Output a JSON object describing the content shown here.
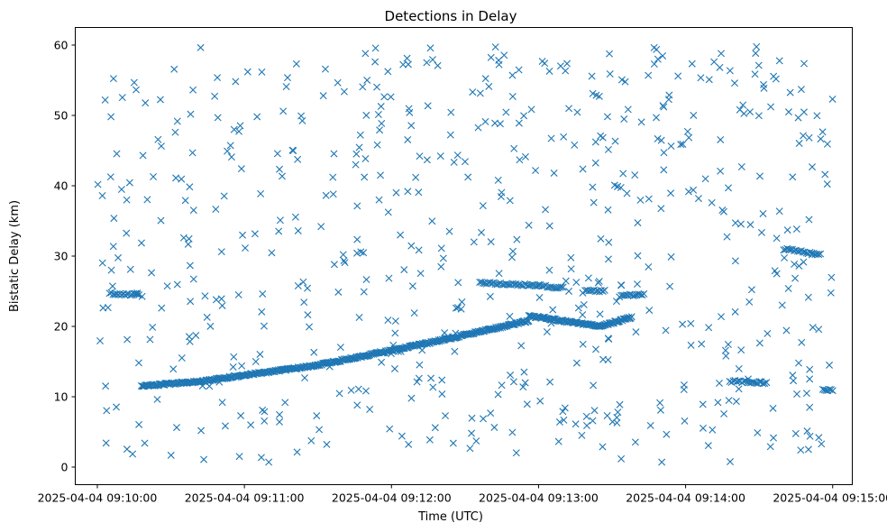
{
  "chart_data": {
    "type": "scatter",
    "title": "Detections in Delay",
    "xlabel": "Time (UTC)",
    "ylabel": "Bistatic Delay (km)",
    "marker": "x",
    "color": "#1f77b4",
    "grid": false,
    "legend": "none",
    "xlim": [
      "2025-04-04 09:09:51",
      "2025-04-04 09:15:08"
    ],
    "ylim": [
      -2.5,
      62.5
    ],
    "xticks": [
      "2025-04-04 09:10:00",
      "2025-04-04 09:11:00",
      "2025-04-04 09:12:00",
      "2025-04-04 09:13:00",
      "2025-04-04 09:14:00",
      "2025-04-04 09:15:00"
    ],
    "yticks": [
      0,
      10,
      20,
      30,
      40,
      50,
      60
    ],
    "track": {
      "name": "",
      "segments": [
        {
          "t_start": "2025-04-04 09:10:18",
          "t_end": "2025-04-04 09:10:42",
          "y_start": 11.5,
          "y_end": 12.2
        },
        {
          "t_start": "2025-04-04 09:10:42",
          "t_end": "2025-04-04 09:11:30",
          "y_start": 12.2,
          "y_end": 14.5
        },
        {
          "t_start": "2025-04-04 09:11:30",
          "t_end": "2025-04-04 09:12:20",
          "y_start": 14.5,
          "y_end": 18.0
        },
        {
          "t_start": "2025-04-04 09:12:20",
          "t_end": "2025-04-04 09:12:56",
          "y_start": 18.0,
          "y_end": 20.8
        },
        {
          "t_start": "2025-04-04 09:12:56",
          "t_end": "2025-04-04 09:13:25",
          "y_start": 21.5,
          "y_end": 20.0
        },
        {
          "t_start": "2025-04-04 09:13:25",
          "t_end": "2025-04-04 09:13:38",
          "y_start": 20.0,
          "y_end": 21.3
        }
      ]
    },
    "clusters": [
      {
        "t": "2025-04-04 09:10:05",
        "y_start": 24.7,
        "y_end": 24.5,
        "dt_end": "2025-04-04 09:10:17"
      },
      {
        "t": "2025-04-04 09:12:36",
        "y_start": 26.2,
        "y_end": 25.8,
        "dt_end": "2025-04-04 09:13:00"
      },
      {
        "t": "2025-04-04 09:13:00",
        "y_start": 25.8,
        "y_end": 25.5,
        "dt_end": "2025-04-04 09:13:10"
      },
      {
        "t": "2025-04-04 09:13:19",
        "y_start": 25.1,
        "y_end": 25.0,
        "dt_end": "2025-04-04 09:13:27"
      },
      {
        "t": "2025-04-04 09:13:33",
        "y_start": 24.3,
        "y_end": 24.6,
        "dt_end": "2025-04-04 09:13:43"
      },
      {
        "t": "2025-04-04 09:14:18",
        "y_start": 12.2,
        "y_end": 12.0,
        "dt_end": "2025-04-04 09:14:33"
      },
      {
        "t": "2025-04-04 09:14:40",
        "y_start": 31.0,
        "y_end": 30.2,
        "dt_end": "2025-04-04 09:14:55"
      },
      {
        "t": "2025-04-04 09:14:56",
        "y_start": 11.0,
        "y_end": 11.0,
        "dt_end": "2025-04-04 09:15:00"
      }
    ],
    "noise": {
      "description": "",
      "count": 620,
      "t_range": [
        "2025-04-04 09:10:00",
        "2025-04-04 09:15:00"
      ],
      "y_range": [
        0.5,
        60
      ]
    }
  }
}
